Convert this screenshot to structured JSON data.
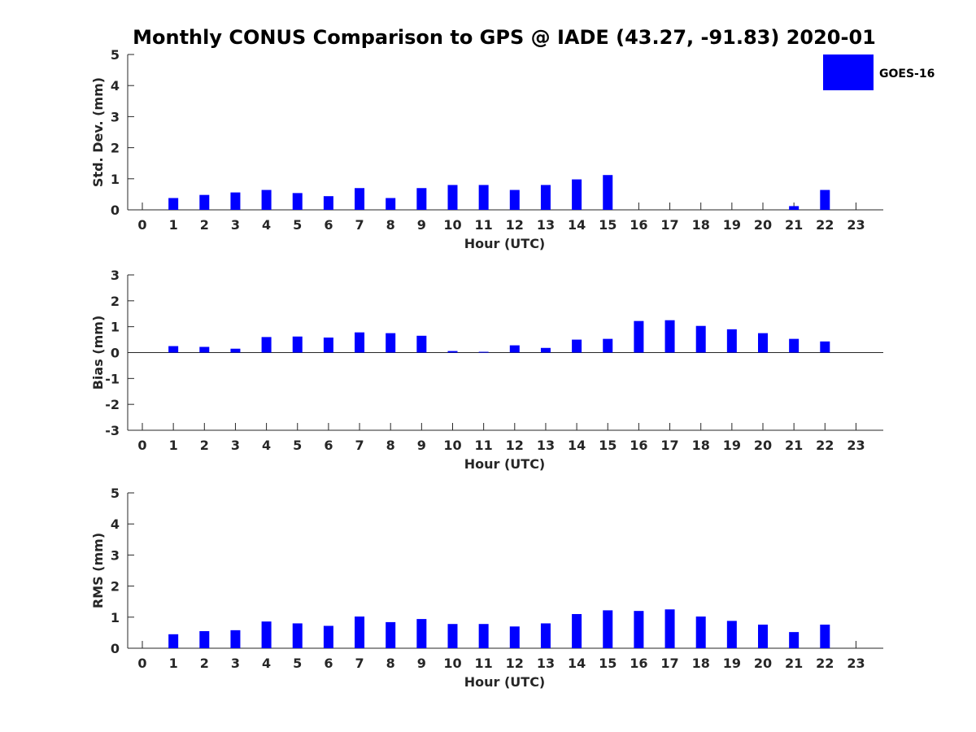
{
  "title": "Monthly CONUS Comparison to GPS @ IADE (43.27, -91.83) 2020-01",
  "legend": {
    "label": "GOES-16",
    "color": "#0000ff",
    "placement": "top-right"
  },
  "chart_data": [
    {
      "type": "bar",
      "name": "std-dev",
      "xlabel": "Hour (UTC)",
      "ylabel": "Std. Dev. (mm)",
      "ylim": [
        0,
        5
      ],
      "yticks": [
        0,
        1,
        2,
        3,
        4,
        5
      ],
      "categories": [
        "0",
        "1",
        "2",
        "3",
        "4",
        "5",
        "6",
        "7",
        "8",
        "9",
        "10",
        "11",
        "12",
        "13",
        "14",
        "15",
        "16",
        "17",
        "18",
        "19",
        "20",
        "21",
        "22",
        "23"
      ],
      "series": [
        {
          "name": "GOES-16",
          "values": [
            null,
            0.38,
            0.48,
            0.56,
            0.64,
            0.54,
            0.44,
            0.7,
            0.38,
            0.7,
            0.8,
            0.8,
            0.64,
            0.8,
            0.98,
            1.12,
            null,
            null,
            null,
            null,
            null,
            0.12,
            0.64,
            null
          ]
        }
      ]
    },
    {
      "type": "bar",
      "name": "bias",
      "xlabel": "Hour (UTC)",
      "ylabel": "Bias (mm)",
      "ylim": [
        -3,
        3
      ],
      "yticks": [
        -3,
        -2,
        -1,
        0,
        1,
        2,
        3
      ],
      "zero_line": true,
      "categories": [
        "0",
        "1",
        "2",
        "3",
        "4",
        "5",
        "6",
        "7",
        "8",
        "9",
        "10",
        "11",
        "12",
        "13",
        "14",
        "15",
        "16",
        "17",
        "18",
        "19",
        "20",
        "21",
        "22",
        "23"
      ],
      "series": [
        {
          "name": "GOES-16",
          "values": [
            null,
            0.25,
            0.22,
            0.15,
            0.6,
            0.62,
            0.58,
            0.78,
            0.75,
            0.65,
            0.06,
            0.03,
            0.28,
            0.18,
            0.5,
            0.53,
            1.22,
            1.25,
            1.03,
            0.9,
            0.75,
            0.53,
            0.43,
            null
          ]
        }
      ]
    },
    {
      "type": "bar",
      "name": "rms",
      "xlabel": "Hour (UTC)",
      "ylabel": "RMS (mm)",
      "ylim": [
        0,
        5
      ],
      "yticks": [
        0,
        1,
        2,
        3,
        4,
        5
      ],
      "categories": [
        "0",
        "1",
        "2",
        "3",
        "4",
        "5",
        "6",
        "7",
        "8",
        "9",
        "10",
        "11",
        "12",
        "13",
        "14",
        "15",
        "16",
        "17",
        "18",
        "19",
        "20",
        "21",
        "22",
        "23"
      ],
      "series": [
        {
          "name": "GOES-16",
          "values": [
            null,
            0.45,
            0.55,
            0.58,
            0.86,
            0.8,
            0.72,
            1.02,
            0.84,
            0.94,
            0.78,
            0.78,
            0.7,
            0.8,
            1.1,
            1.22,
            1.2,
            1.25,
            1.02,
            0.88,
            0.76,
            0.52,
            0.76,
            null
          ]
        }
      ]
    }
  ]
}
